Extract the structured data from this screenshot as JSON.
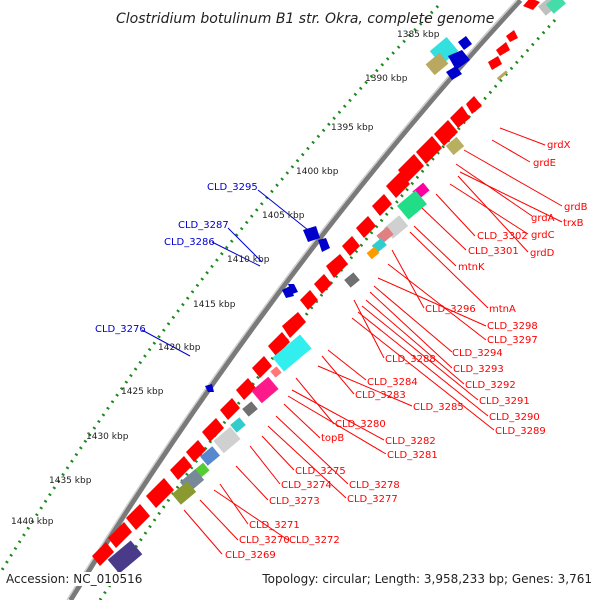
{
  "title": "Clostridium botulinum B1 str. Okra, complete genome",
  "accession": "Accession: NC_010516",
  "topology": "Topology: circular; Length: 3,958,233 bp; Genes: 3,761",
  "colors": {
    "forward_gene": "#ff0000",
    "reverse_gene": "#0000cc",
    "backbone": "#888888",
    "tick": "#1a8a1a"
  },
  "kbp_ticks": [
    "1385 kbp",
    "1390 kbp",
    "1395 kbp",
    "1400 kbp",
    "1405 kbp",
    "1410 kbp",
    "1415 kbp",
    "1420 kbp",
    "1425 kbp",
    "1430 kbp",
    "1435 kbp",
    "1440 kbp"
  ],
  "blue_labels": [
    "CLD_3295",
    "CLD_3287",
    "CLD_3286",
    "CLD_3276"
  ],
  "red_labels": [
    "grdX",
    "grdE",
    "grdB",
    "grdA",
    "trxB",
    "CLD_3302",
    "grdC",
    "CLD_3301",
    "grdD",
    "mtnK",
    "CLD_3296",
    "mtnA",
    "CLD_3298",
    "CLD_3297",
    "CLD_3294",
    "CLD_3288",
    "CLD_3293",
    "CLD_3292",
    "CLD_3284",
    "CLD_3283",
    "CLD_3291",
    "CLD_3285",
    "CLD_3290",
    "CLD_3280",
    "CLD_3289",
    "topB",
    "CLD_3282",
    "CLD_3281",
    "CLD_3275",
    "CLD_3278",
    "CLD_3274",
    "CLD_3277",
    "CLD_3273",
    "CLD_3271",
    "CLD_3270",
    "CLD_3272",
    "CLD_3269"
  ]
}
